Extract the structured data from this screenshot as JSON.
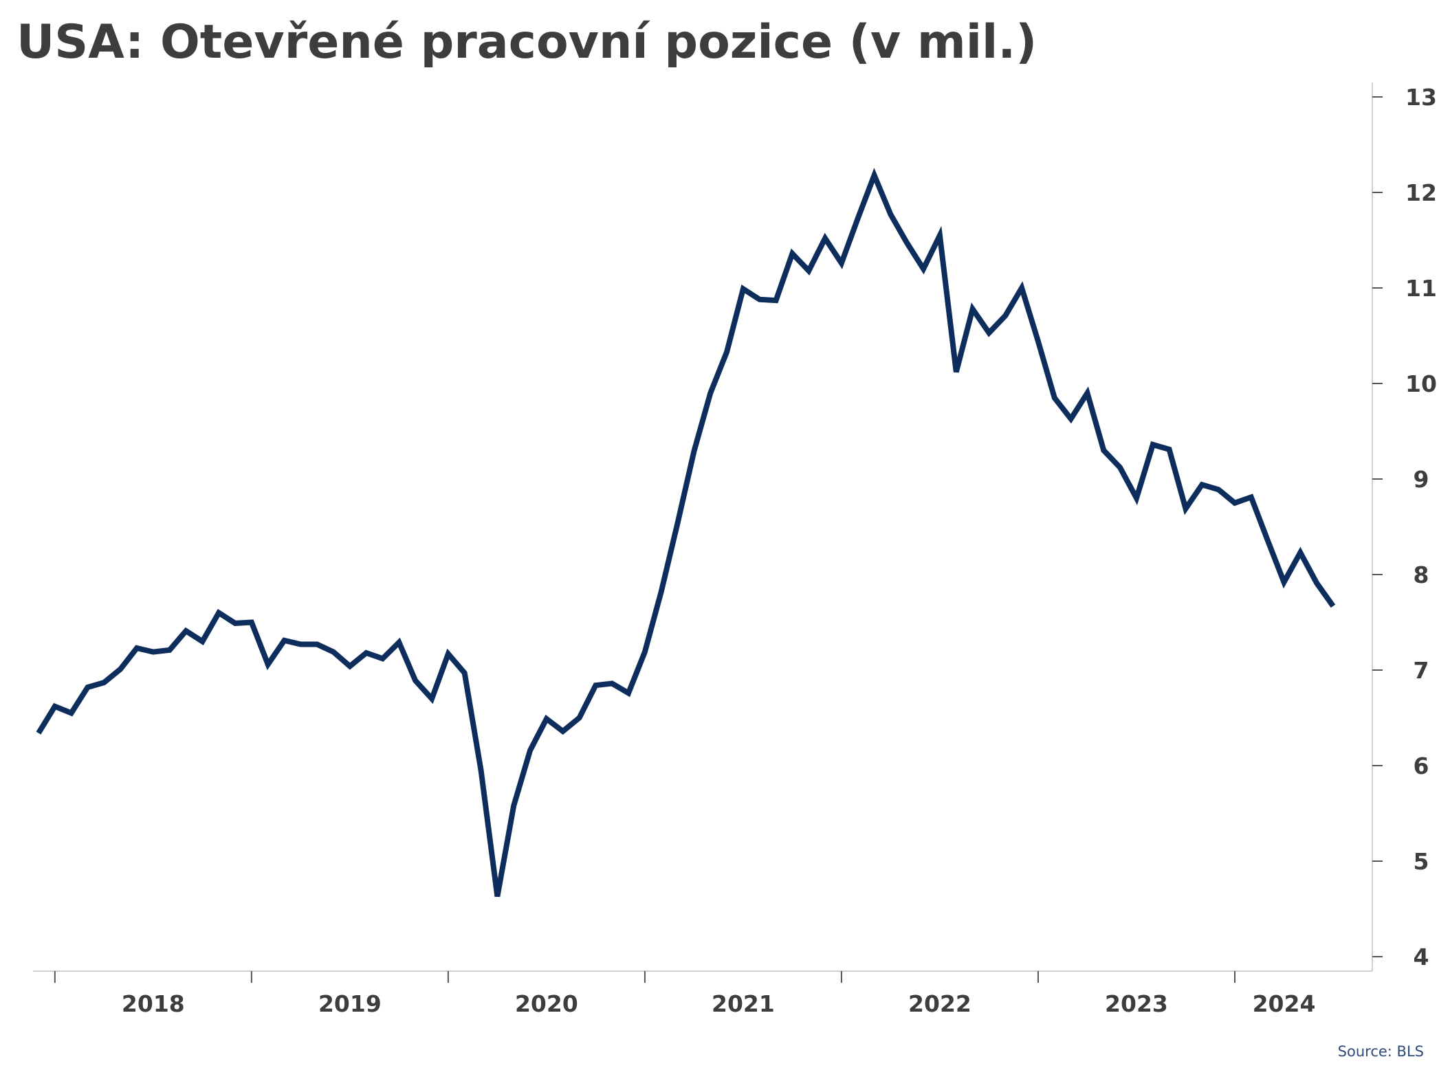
{
  "title": "USA: Otevřené pracovní pozice (v mil.)",
  "source": "Source: BLS",
  "colors": {
    "line": "#0d2d5c",
    "axis": "#cfcfcf",
    "text": "#3d3d3d"
  },
  "chart_data": {
    "type": "line",
    "title": "USA: Otevřené pracovní pozice (v mil.)",
    "xlabel": "",
    "ylabel": "",
    "x_ticks": [
      "2018",
      "2019",
      "2020",
      "2021",
      "2022",
      "2023",
      "2024"
    ],
    "y_ticks": [
      4,
      5,
      6,
      7,
      8,
      9,
      10,
      11,
      12,
      13
    ],
    "ylim": [
      4,
      13
    ],
    "y_axis_side": "right",
    "grid": false,
    "legend": "none",
    "x_start": "2017-12",
    "series": [
      {
        "values": [
          6.34,
          6.62,
          6.55,
          6.82,
          6.87,
          7.01,
          7.23,
          7.19,
          7.21,
          7.41,
          7.3,
          7.6,
          7.49,
          7.5,
          7.06,
          7.31,
          7.27,
          7.27,
          7.19,
          7.04,
          7.18,
          7.12,
          7.29,
          6.89,
          6.7,
          7.17,
          6.97,
          5.95,
          4.63,
          5.58,
          6.16,
          6.49,
          6.36,
          6.5,
          6.84,
          6.86,
          6.76,
          7.19,
          7.82,
          8.54,
          9.29,
          9.9,
          10.33,
          10.99,
          10.88,
          10.87,
          11.36,
          11.18,
          11.52,
          11.26,
          11.73,
          12.18,
          11.77,
          11.47,
          11.2,
          11.55,
          10.12,
          10.78,
          10.53,
          10.71,
          11.0,
          10.44,
          9.85,
          9.63,
          9.9,
          9.3,
          9.12,
          8.8,
          9.36,
          9.31,
          8.69,
          8.94,
          8.89,
          8.75,
          8.81,
          8.36,
          7.92,
          8.23,
          7.91,
          7.67
        ]
      }
    ]
  }
}
